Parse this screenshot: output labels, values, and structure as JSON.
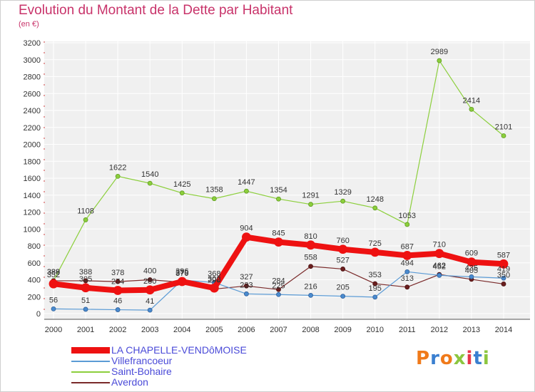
{
  "title": "Evolution du Montant de la Dette par Habitant",
  "subtitle": "(en €)",
  "logo": "Proxiti",
  "chart_data": {
    "type": "line",
    "title": "Evolution du Montant de la Dette par Habitant",
    "ylabel": "(en €)",
    "xlabel": "",
    "x": [
      "2000",
      "2001",
      "2002",
      "2003",
      "2004",
      "2005",
      "2006",
      "2007",
      "2008",
      "2009",
      "2010",
      "2011",
      "2012",
      "2013",
      "2014"
    ],
    "ylim": [
      0,
      3200
    ],
    "yticks": [
      0,
      200,
      400,
      600,
      800,
      1000,
      1200,
      1400,
      1600,
      1800,
      2000,
      2200,
      2400,
      2600,
      2800,
      3000,
      3200
    ],
    "grid": true,
    "legend_position": "bottom-left",
    "series": [
      {
        "name": "LA CHAPELLE-VENDôMOISE",
        "color": "#ee1111",
        "values": [
          352,
          305,
          274,
          280,
          379,
          302,
          904,
          845,
          810,
          760,
          725,
          687,
          710,
          609,
          587
        ],
        "labels": [
          "352",
          "305",
          "274",
          "280",
          "379",
          "302",
          "904",
          "845",
          "810",
          "760",
          "725",
          "687",
          "710",
          "609",
          "587"
        ]
      },
      {
        "name": "Villefrancoeur",
        "color": "#5b9bd5",
        "values": [
          56,
          51,
          46,
          41,
          396,
          368,
          233,
          225,
          216,
          205,
          195,
          494,
          452,
          435,
          419
        ],
        "labels": [
          "56",
          "51",
          "46",
          "41",
          "396",
          "368",
          "233",
          "225",
          "216",
          "205",
          "195",
          "494",
          "452",
          "435",
          "419"
        ]
      },
      {
        "name": "Saint-Bohaire",
        "color": "#8ccf3c",
        "values": [
          389,
          1108,
          1622,
          1540,
          1425,
          1358,
          1447,
          1354,
          1291,
          1329,
          1248,
          1053,
          2989,
          2414,
          2101
        ],
        "labels": [
          "389",
          "1108",
          "1622",
          "1540",
          "1425",
          "1358",
          "1447",
          "1354",
          "1291",
          "1329",
          "1248",
          "1053",
          "2989",
          "2414",
          "2101"
        ]
      },
      {
        "name": "Averdon",
        "color": "#7a2a2a",
        "values": [
          388,
          388,
          378,
          400,
          370,
          290,
          327,
          284,
          558,
          527,
          353,
          313,
          462,
          405,
          350
        ],
        "labels": [
          "388",
          "388",
          "378",
          "400",
          "370",
          "290",
          "327",
          "284",
          "558",
          "527",
          "353",
          "313",
          "462",
          "405",
          "350"
        ]
      }
    ]
  }
}
